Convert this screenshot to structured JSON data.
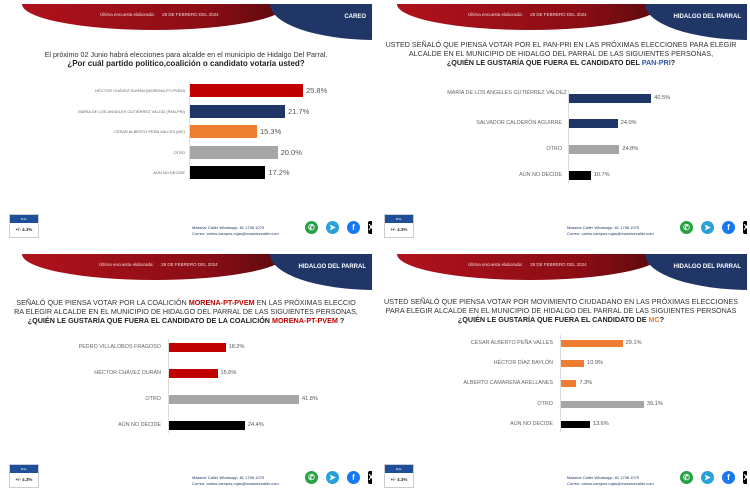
{
  "header": {
    "date_label": "Última encuesta elaborada:",
    "date": "28 DE FEBRERO DEL 2024"
  },
  "footer": {
    "me_label": "M.E.",
    "me_value": "+/- 4.3%",
    "whatsapp": "Massive Caller Whatsapp: 81 1798 1079",
    "email": "Correo: carlos.campos.rojas@massivecaller.com"
  },
  "icons": [
    "whatsapp-icon",
    "telegram-icon",
    "facebook-icon",
    "x-icon"
  ],
  "colors": {
    "morena": "#c00000",
    "pan_pri": "#1f3667",
    "mc": "#ed7d31",
    "otro": "#a6a6a6",
    "no_decide": "#000000"
  },
  "chart_data": [
    {
      "type": "bar",
      "orientation": "horizontal",
      "tag": "CAREO",
      "title_lines": [
        [
          {
            "t": "El próximo 02 Junio habrá elecciones para alcalde en el municipio de Hidalgo Del Parral."
          }
        ],
        [
          {
            "t": "¿Por cuál partido politico,coalición o candidato votaría usted?",
            "b": true
          }
        ]
      ],
      "categories": [
        "HÉCTOR CHÁVEZ DURÁN (MORENA-PT-PVEM)",
        "MARÍA DE LOS ANGELES GUTIÉRREZ VALDIZ (PAN-PRI)",
        "CÉSAR ALBERTO PEÑA VALLES (MC)",
        "OTRO",
        "AÚN NO DECIDE"
      ],
      "values": [
        25.8,
        21.7,
        15.3,
        20.0,
        17.2
      ],
      "labels": [
        "25.8%",
        "21.7%",
        "15.3%",
        "20.0%",
        "17.2%"
      ],
      "colors": [
        "#c00000",
        "#1f3667",
        "#ed7d31",
        "#a6a6a6",
        "#000000"
      ]
    },
    {
      "type": "bar",
      "orientation": "horizontal",
      "tag": "HIDALGO DEL PARRAL",
      "title_lines": [
        [
          {
            "t": "USTED SEÑALÓ QUE PIENSA VOTAR POR EL PAN-PRI EN LAS PRÓXIMAS ELECCIONES PARA ELEGIR"
          }
        ],
        [
          {
            "t": "ALCALDE EN EL MUNICIPIO DE HIDALGO DEL PARRAL DE LAS SIGUIENTES PERSONAS,"
          }
        ],
        [
          {
            "t": "¿QUIÉN LE GUSTARÍA QUE FUERA EL CANDIDATO DEL ",
            "b": true
          },
          {
            "t": "PAN-PRI",
            "b": true,
            "c": "#2e5aa8"
          },
          {
            "t": "?",
            "b": true
          }
        ]
      ],
      "categories": [
        "MARÍA DE LOS ANGELES GUTIÉRREZ VALDEZ",
        "SALVADOR CALDERÓN AGUIRRE",
        "OTRO",
        "AÚN NO DECIDE"
      ],
      "values": [
        40.5,
        24.0,
        24.8,
        10.7
      ],
      "labels": [
        "40.5%",
        "24.0%",
        "24.8%",
        "10.7%"
      ],
      "colors": [
        "#1f3667",
        "#1f3667",
        "#a6a6a6",
        "#000000"
      ]
    },
    {
      "type": "bar",
      "orientation": "horizontal",
      "tag": "HIDALGO DEL PARRAL",
      "title_lines": [
        [
          {
            "t": "SEÑALÓ QUE PIENSA VOTAR POR LA COALICIÓN "
          },
          {
            "t": "MORENA-PT-PVEM",
            "b": true,
            "c": "#c00000"
          },
          {
            "t": " EN LAS PRÓXIMAS ELECCIO"
          }
        ],
        [
          {
            "t": "RA ELEGIR ALCALDE EN EL MUNICIPIO DE HIDALGO DEL PARRAL DE LAS SIGUIENTES PERSONAS,"
          }
        ],
        [
          {
            "t": "¿QUIÉN LE GUSTARÍA QUE FUERA EL CANDIDATO DE LA COALICIÓN ",
            "b": true
          },
          {
            "t": "MORENA-PT-PVEM",
            "b": true,
            "c": "#c00000"
          },
          {
            "t": " ?",
            "b": true
          }
        ]
      ],
      "categories": [
        "PEDRO VILLALOBOS FRAGOSO",
        "HÉCTOR CHÁVEZ DURÁN",
        "OTRO",
        "AÚN NO DECIDE"
      ],
      "values": [
        18.2,
        15.6,
        41.8,
        24.4
      ],
      "labels": [
        "18.2%",
        "15.6%",
        "41.8%",
        "24.4%"
      ],
      "colors": [
        "#c00000",
        "#c00000",
        "#a6a6a6",
        "#000000"
      ]
    },
    {
      "type": "bar",
      "orientation": "horizontal",
      "tag": "HIDALGO DEL PARRAL",
      "title_lines": [
        [
          {
            "t": "USTED SEÑALÓ QUE PIENSA VOTAR POR MOVIMIENTO CIUDADANO EN LAS PRÓXIMAS ELECCIONES"
          }
        ],
        [
          {
            "t": "PARA ELEGIR ALCALDE EN EL MUNICIPIO DE HIDALGO DEL PARRAL DE LAS SIGUIENTES PERSONAS"
          }
        ],
        [
          {
            "t": "¿QUIÉN LE GUSTARÍA QUE FUERA EL CANDIDATO DE ",
            "b": true
          },
          {
            "t": "MC",
            "b": true,
            "c": "#ed7d31"
          },
          {
            "t": "?",
            "b": true
          }
        ]
      ],
      "categories": [
        "CÉSAR ALBERTO PEÑA VALLES",
        "HÉCTOR DÍAZ BAYLÓN",
        "ALBERTO CAMARENA ARELLANES",
        "OTRO",
        "AÚN NO DECIDE"
      ],
      "values": [
        29.1,
        10.9,
        7.3,
        39.1,
        13.6
      ],
      "labels": [
        "29.1%",
        "10.9%",
        "7.3%",
        "39.1%",
        "13.6%"
      ],
      "colors": [
        "#ed7d31",
        "#ed7d31",
        "#ed7d31",
        "#a6a6a6",
        "#000000"
      ]
    }
  ]
}
